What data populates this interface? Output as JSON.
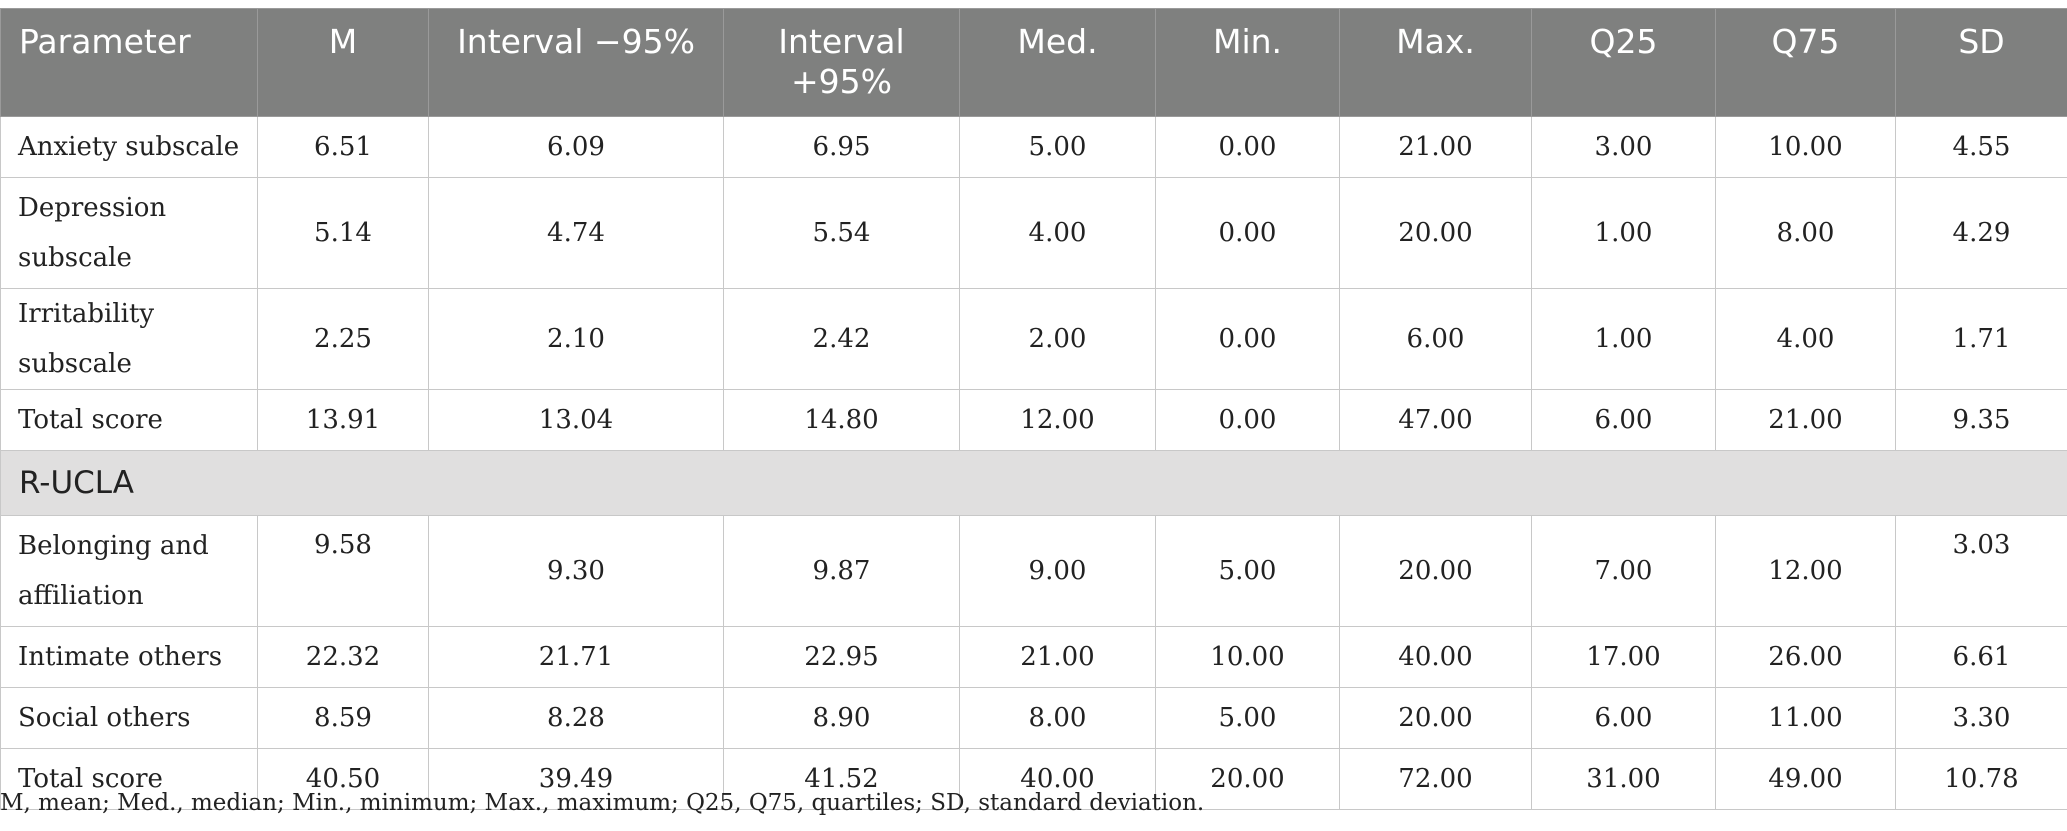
{
  "table": {
    "headers": [
      "Parameter",
      "M",
      "Interval −95%",
      "Interval +95%",
      "Med.",
      "Min.",
      "Max.",
      "Q25",
      "Q75",
      "SD"
    ],
    "rows_group1": [
      {
        "label": "Anxiety subscale",
        "values": [
          "6.51",
          "6.09",
          "6.95",
          "5.00",
          "0.00",
          "21.00",
          "3.00",
          "10.00",
          "4.55"
        ]
      },
      {
        "label": "Depression subscale",
        "values": [
          "5.14",
          "4.74",
          "5.54",
          "4.00",
          "0.00",
          "20.00",
          "1.00",
          "8.00",
          "4.29"
        ]
      },
      {
        "label": "Irritability subscale",
        "values": [
          "2.25",
          "2.10",
          "2.42",
          "2.00",
          "0.00",
          "6.00",
          "1.00",
          "4.00",
          "1.71"
        ]
      },
      {
        "label": "Total score",
        "values": [
          "13.91",
          "13.04",
          "14.80",
          "12.00",
          "0.00",
          "47.00",
          "6.00",
          "21.00",
          "9.35"
        ]
      }
    ],
    "section_title": "R-UCLA",
    "rows_group2": [
      {
        "label": "Belonging and affiliation",
        "values": [
          "9.58",
          "9.30",
          "9.87",
          "9.00",
          "5.00",
          "20.00",
          "7.00",
          "12.00",
          "3.03"
        ]
      },
      {
        "label": "Intimate others",
        "values": [
          "22.32",
          "21.71",
          "22.95",
          "21.00",
          "10.00",
          "40.00",
          "17.00",
          "26.00",
          "6.61"
        ]
      },
      {
        "label": "Social others",
        "values": [
          "8.59",
          "8.28",
          "8.90",
          "8.00",
          "5.00",
          "20.00",
          "6.00",
          "11.00",
          "3.30"
        ]
      },
      {
        "label": "Total score",
        "values": [
          "40.50",
          "39.49",
          "41.52",
          "40.00",
          "20.00",
          "72.00",
          "31.00",
          "49.00",
          "10.78"
        ]
      }
    ]
  },
  "footnote": "M, mean; Med., median; Min., minimum; Max., maximum; Q25, Q75, quartiles; SD, standard deviation."
}
